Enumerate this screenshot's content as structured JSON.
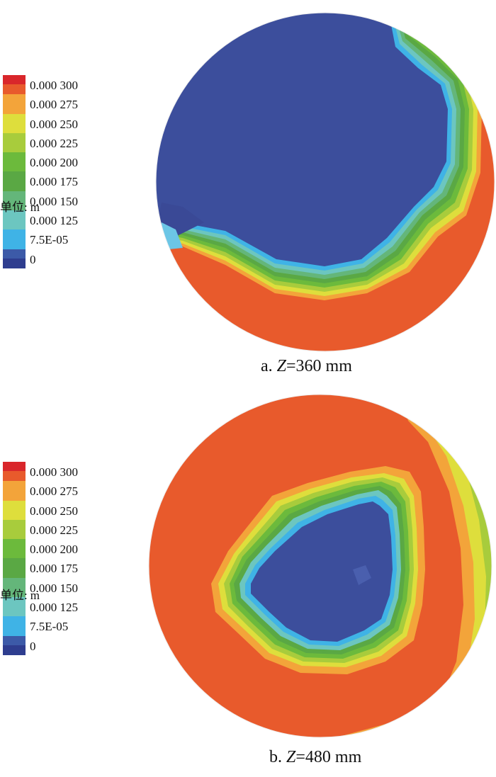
{
  "legend": {
    "colors": [
      "#d9262b",
      "#e85a2c",
      "#f3a43a",
      "#dede3c",
      "#a8cc3c",
      "#6cba3c",
      "#5aa844",
      "#64b67a",
      "#6cc6c0",
      "#3fb3e6",
      "#3c5aa8",
      "#2e3d8f"
    ],
    "labels": [
      "0.000 300",
      "0.000 275",
      "0.000 250",
      "0.000 225",
      "0.000 200",
      "0.000 175",
      "0.000 150",
      "0.000 125",
      "7.5E-05",
      "0"
    ],
    "unit_label": "单位:",
    "unit_value": "m"
  },
  "panels": [
    {
      "caption_prefix": "a. ",
      "caption_var": "Z",
      "caption_value": "=360 mm"
    },
    {
      "caption_prefix": "b. ",
      "caption_var": "Z",
      "caption_value": "=480 mm"
    }
  ]
}
